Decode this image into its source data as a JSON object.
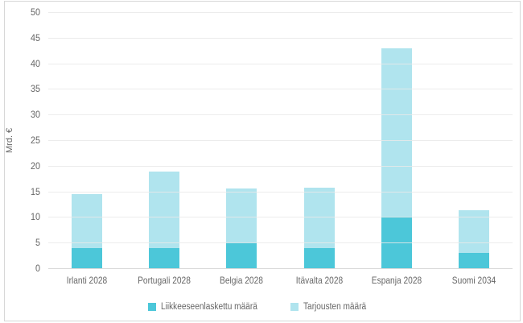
{
  "window": {
    "background": "#FFFFFF",
    "border_color": "#D7D7D7"
  },
  "chart_data": {
    "type": "bar",
    "stacked": true,
    "title": "",
    "ylabel": "Mrd. €",
    "ylim": [
      0,
      50
    ],
    "ytick_step": 5,
    "yticks": [
      0,
      5,
      10,
      15,
      20,
      25,
      30,
      35,
      40,
      45,
      50
    ],
    "grid": true,
    "legend_position": "bottom",
    "categories": [
      "Irlanti 2028",
      "Portugali 2028",
      "Belgia 2028",
      "Itävalta 2028",
      "Espanja 2028",
      "Suomi 2034"
    ],
    "series": [
      {
        "name": "Liikkeeseenlaskettu määrä",
        "color": "#4CC7D9",
        "values": [
          4,
          4,
          5,
          4,
          10,
          3
        ]
      },
      {
        "name": "Tarjousten määrä",
        "color": "#B0E4EE",
        "values": [
          10.5,
          14.8,
          10.5,
          11.7,
          33,
          8.3
        ]
      }
    ],
    "stack_totals": [
      14.5,
      18.8,
      15.5,
      15.7,
      43,
      11.3
    ],
    "colors": {
      "gridline": "#E9E9E9",
      "axis_line": "#D9D9D9",
      "text": "#666666"
    }
  }
}
